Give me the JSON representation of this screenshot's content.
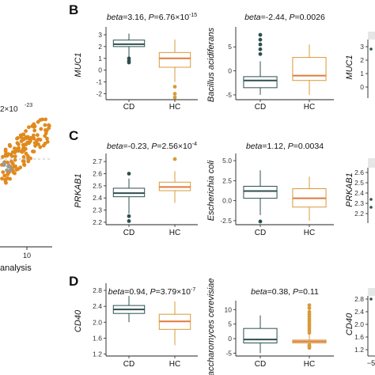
{
  "figure": {
    "left_partial": {
      "p_fragment": "2×10",
      "p_exponent": "-23",
      "x_tick": "10",
      "x_axis_fragment": "analysis"
    },
    "panels": [
      {
        "letter": "B"
      },
      {
        "letter": "C"
      },
      {
        "letter": "D"
      }
    ],
    "right_partial": {
      "row_B": {
        "ylabel": "MUC1",
        "ticks": [
          "3",
          "2",
          "1",
          "0"
        ]
      },
      "row_C": {
        "ylabel": "PRKAB1",
        "ticks": [
          "2.6",
          "2.5",
          "2.4",
          "2.3",
          "2.2"
        ]
      },
      "row_D": {
        "ylabel": "CD40",
        "ticks": [
          "2.8",
          "2.4",
          "2.0",
          "1.6",
          "1.2"
        ],
        "bottom_tick": "−5"
      }
    }
  },
  "colors": {
    "cd": "#2f4f4f",
    "hc": "#d99a3a",
    "hc_median": "#e07a3c",
    "scatter": "#e08a1e",
    "ref_line": "#aaaaaa"
  },
  "chart_data": [
    {
      "type": "box",
      "panel": "B",
      "position": "left",
      "title": {
        "beta": "3.16",
        "p": "6.76×10",
        "p_exp": "-15"
      },
      "xlabel": "",
      "ylabel": "MUC1",
      "categories": [
        "CD",
        "HC"
      ],
      "yticks": [
        -2,
        -1,
        0,
        1,
        2,
        3
      ],
      "ylim": [
        -2.5,
        3.4
      ],
      "boxes": [
        {
          "group": "CD",
          "whisker_low": 1.1,
          "q1": 2.0,
          "median": 2.2,
          "q3": 2.55,
          "whisker_high": 3.1,
          "outliers": [
            1.0,
            0.8,
            0.65
          ]
        },
        {
          "group": "HC",
          "whisker_low": -1.0,
          "q1": 0.25,
          "median": 1.0,
          "q3": 1.5,
          "whisker_high": 2.6,
          "outliers": [
            -1.4,
            -2.0,
            -2.3
          ]
        }
      ]
    },
    {
      "type": "box",
      "panel": "B",
      "position": "right",
      "title": {
        "beta": "-2.44",
        "p": "0.0026",
        "p_exp": ""
      },
      "xlabel": "",
      "ylabel": "Bacillus acidiferans",
      "categories": [
        "CD",
        "HC"
      ],
      "yticks": [
        -5,
        0,
        5
      ],
      "ylim": [
        -6,
        8.5
      ],
      "boxes": [
        {
          "group": "CD",
          "whisker_low": -5,
          "q1": -3.5,
          "median": -2.0,
          "q3": -1.2,
          "whisker_high": 2.0,
          "outliers": [
            3.5,
            4.5,
            5.5,
            6.5,
            7.5
          ]
        },
        {
          "group": "HC",
          "whisker_low": -5,
          "q1": -2.0,
          "median": -1.0,
          "q3": 2.8,
          "whisker_high": 5.5,
          "outliers": []
        }
      ]
    },
    {
      "type": "box",
      "panel": "C",
      "position": "left",
      "title": {
        "beta": "-0.23",
        "p": "2.56×10",
        "p_exp": "-4"
      },
      "xlabel": "",
      "ylabel": "PRKAB1",
      "categories": [
        "CD",
        "HC"
      ],
      "yticks": [
        2.2,
        2.3,
        2.4,
        2.5,
        2.6,
        2.7
      ],
      "ylim": [
        2.18,
        2.74
      ],
      "boxes": [
        {
          "group": "CD",
          "whisker_low": 2.27,
          "q1": 2.41,
          "median": 2.44,
          "q3": 2.48,
          "whisker_high": 2.56,
          "outliers": [
            2.6,
            2.25,
            2.21
          ]
        },
        {
          "group": "HC",
          "whisker_low": 2.36,
          "q1": 2.46,
          "median": 2.49,
          "q3": 2.53,
          "whisker_high": 2.62,
          "outliers": [
            2.72
          ]
        }
      ]
    },
    {
      "type": "box",
      "panel": "C",
      "position": "right",
      "title": {
        "beta": "1.12",
        "p": "0.0034",
        "p_exp": ""
      },
      "xlabel": "",
      "ylabel": "Escherichia coli",
      "categories": [
        "CD",
        "HC"
      ],
      "yticks": [
        -2.5,
        0.0,
        2.5,
        5.0
      ],
      "ylim": [
        -3,
        5.5
      ],
      "boxes": [
        {
          "group": "CD",
          "whisker_low": -1.8,
          "q1": 0.3,
          "median": 1.2,
          "q3": 1.8,
          "whisker_high": 3.8,
          "outliers": [
            -2.6
          ]
        },
        {
          "group": "HC",
          "whisker_low": -2.5,
          "q1": -0.8,
          "median": 0.3,
          "q3": 1.5,
          "whisker_high": 3.0,
          "outliers": []
        }
      ]
    },
    {
      "type": "box",
      "panel": "D",
      "position": "left",
      "title": {
        "beta": "0.94",
        "p": "3.79×10",
        "p_exp": "-7"
      },
      "xlabel": "",
      "ylabel": "CD40",
      "categories": [
        "CD",
        "HC"
      ],
      "yticks": [
        1.2,
        1.6,
        2.0,
        2.4,
        2.8
      ],
      "ylim": [
        1.15,
        2.9
      ],
      "boxes": [
        {
          "group": "CD",
          "whisker_low": 2.0,
          "q1": 2.22,
          "median": 2.32,
          "q3": 2.42,
          "whisker_high": 2.66,
          "outliers": []
        },
        {
          "group": "HC",
          "whisker_low": 1.42,
          "q1": 1.82,
          "median": 2.02,
          "q3": 2.2,
          "whisker_high": 2.52,
          "outliers": []
        }
      ]
    },
    {
      "type": "box",
      "panel": "D",
      "position": "right",
      "title": {
        "beta": "0.38",
        "p": "0.11",
        "p_exp": ""
      },
      "xlabel": "",
      "ylabel": "Saccharomyces cerevisiae",
      "categories": [
        "CD",
        "HC"
      ],
      "yticks": [
        -5,
        0,
        5,
        10
      ],
      "ylim": [
        -6,
        12
      ],
      "boxes": [
        {
          "group": "CD",
          "whisker_low": -5,
          "q1": -1.5,
          "median": -0.3,
          "q3": 3.5,
          "whisker_high": 8.0,
          "outliers": []
        },
        {
          "group": "HC",
          "whisker_low": -3.0,
          "q1": -1.5,
          "median": -1.0,
          "q3": -0.5,
          "whisker_high": 1.5,
          "outliers": [
            2.0,
            2.8,
            3.6,
            4.4,
            5.2,
            6.0,
            6.8,
            7.6,
            8.4,
            9.2,
            10.5,
            11.5,
            -2.2,
            -2.6,
            -3.2
          ]
        }
      ]
    }
  ]
}
